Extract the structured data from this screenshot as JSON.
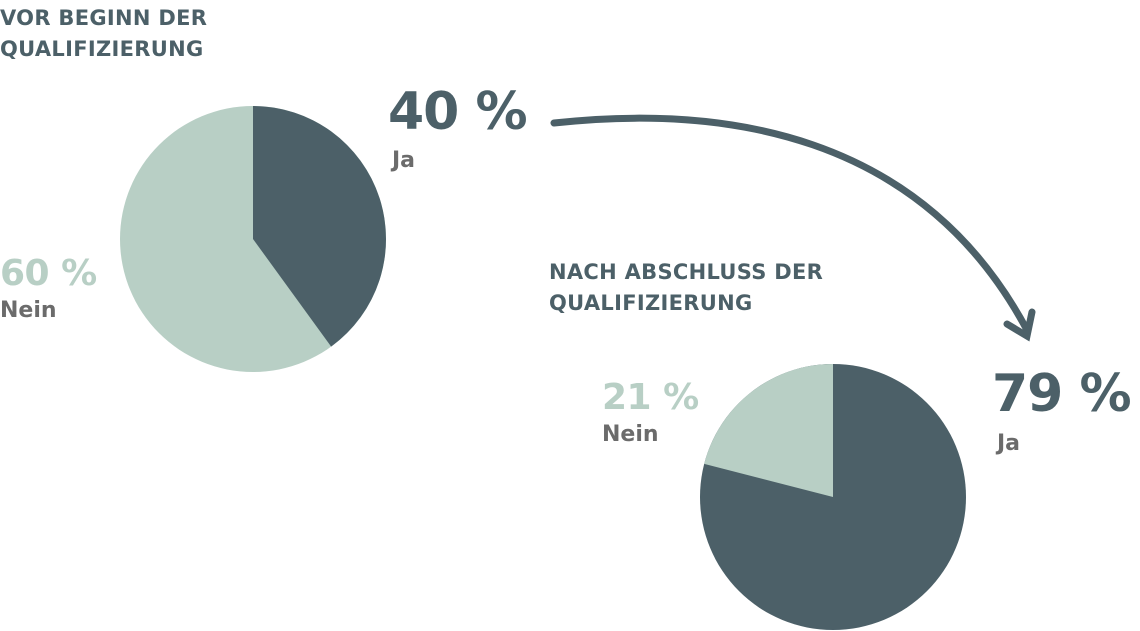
{
  "colors": {
    "ja": "#4c6068",
    "nein": "#b8cfc5",
    "label": "#6b6b6b",
    "arrow": "#4c6068"
  },
  "before": {
    "heading_line1": "VOR BEGINN DER",
    "heading_line2": "QUALIFIZIERUNG",
    "ja_pct": "40 %",
    "ja_label": "Ja",
    "nein_pct": "60 %",
    "nein_label": "Nein"
  },
  "after": {
    "heading_line1": "NACH ABSCHLUSS DER",
    "heading_line2": "QUALIFIZIERUNG",
    "ja_pct": "79 %",
    "ja_label": "Ja",
    "nein_pct": "21 %",
    "nein_label": "Nein"
  },
  "chart_data": [
    {
      "type": "pie",
      "title": "Vor Beginn der Qualifizierung",
      "categories": [
        "Ja",
        "Nein"
      ],
      "values": [
        40,
        60
      ],
      "colors": [
        "#4c6068",
        "#b8cfc5"
      ]
    },
    {
      "type": "pie",
      "title": "Nach Abschluss der Qualifizierung",
      "categories": [
        "Ja",
        "Nein"
      ],
      "values": [
        79,
        21
      ],
      "colors": [
        "#4c6068",
        "#b8cfc5"
      ]
    }
  ]
}
